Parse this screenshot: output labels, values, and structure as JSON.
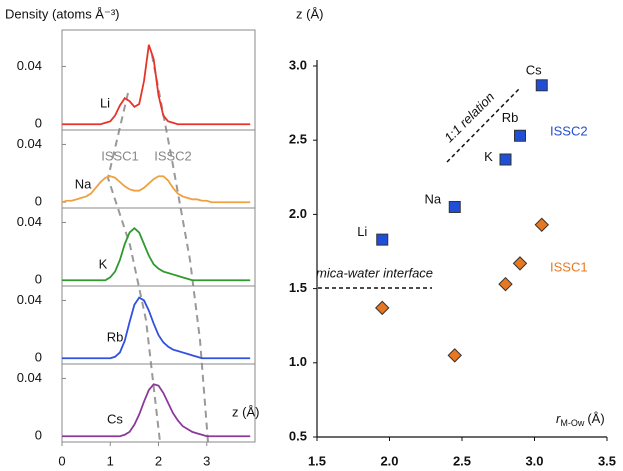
{
  "chart_data": [
    {
      "type": "panel-lines",
      "y_label": "Density (atoms Å⁻³)",
      "x_label": "z (Å)",
      "annotations": [
        "ISSC1",
        "ISSC2"
      ],
      "xlim": [
        0,
        4
      ],
      "xticks": [
        0,
        1,
        2,
        3
      ],
      "ylim": [
        -0.004,
        0.05
      ],
      "yticks": [
        0,
        0.04
      ],
      "x": [
        0,
        0.1,
        0.2,
        0.3,
        0.4,
        0.5,
        0.6,
        0.7,
        0.8,
        0.9,
        1.0,
        1.1,
        1.2,
        1.3,
        1.4,
        1.5,
        1.6,
        1.7,
        1.8,
        1.9,
        2.0,
        2.1,
        2.2,
        2.3,
        2.4,
        2.5,
        2.6,
        2.7,
        2.8,
        2.9,
        3.0,
        3.1,
        3.2,
        3.3,
        3.4,
        3.5,
        3.6,
        3.7,
        3.8,
        3.9
      ],
      "series": [
        {
          "name": "Li",
          "color": "#e8332a",
          "values": [
            0,
            0,
            0,
            0,
            0,
            0,
            0,
            0,
            0,
            0.001,
            0.002,
            0.006,
            0.013,
            0.018,
            0.016,
            0.012,
            0.014,
            0.03,
            0.055,
            0.045,
            0.02,
            0.006,
            0.002,
            0.001,
            0,
            0,
            0,
            0,
            0,
            0,
            0,
            0,
            0,
            0,
            0,
            0,
            0,
            0,
            0,
            0
          ]
        },
        {
          "name": "Na",
          "color": "#f0a040",
          "values": [
            0,
            0.001,
            0.001,
            0.002,
            0.003,
            0.004,
            0.006,
            0.01,
            0.014,
            0.017,
            0.018,
            0.017,
            0.014,
            0.011,
            0.009,
            0.008,
            0.008,
            0.01,
            0.013,
            0.016,
            0.018,
            0.018,
            0.015,
            0.01,
            0.006,
            0.004,
            0.003,
            0.002,
            0.002,
            0.001,
            0.001,
            0,
            0,
            0,
            0,
            0,
            0,
            0,
            0,
            0
          ]
        },
        {
          "name": "K",
          "color": "#2e9a2e",
          "values": [
            0,
            0,
            0,
            0,
            0,
            0,
            0,
            0,
            0,
            0,
            0.002,
            0.006,
            0.014,
            0.025,
            0.033,
            0.036,
            0.033,
            0.025,
            0.017,
            0.011,
            0.008,
            0.006,
            0.005,
            0.004,
            0.003,
            0.002,
            0.001,
            0,
            0,
            0,
            0,
            0,
            0,
            0,
            0,
            0,
            0,
            0,
            0,
            0
          ]
        },
        {
          "name": "Rb",
          "color": "#3050e0",
          "values": [
            0,
            0,
            0,
            0,
            0,
            0,
            0,
            0,
            0,
            0,
            0,
            0.001,
            0.004,
            0.012,
            0.025,
            0.037,
            0.042,
            0.04,
            0.033,
            0.024,
            0.016,
            0.011,
            0.008,
            0.006,
            0.005,
            0.004,
            0.003,
            0.002,
            0.001,
            0,
            0,
            0,
            0,
            0,
            0,
            0,
            0,
            0,
            0,
            0
          ]
        },
        {
          "name": "Cs",
          "color": "#8b3a9a",
          "values": [
            0,
            0,
            0,
            0,
            0,
            0,
            0,
            0,
            0,
            0,
            0,
            0,
            0,
            0.001,
            0.003,
            0.008,
            0.015,
            0.024,
            0.032,
            0.036,
            0.035,
            0.03,
            0.023,
            0.016,
            0.011,
            0.007,
            0.005,
            0.003,
            0.002,
            0.001,
            0,
            0,
            0,
            0,
            0,
            0,
            0,
            0,
            0,
            0
          ]
        }
      ]
    },
    {
      "type": "scatter",
      "y_label": "z (Å)",
      "x_label": {
        "main": "r",
        "sub": "M-Ow",
        "unit": "(Å)"
      },
      "annotations": [
        "1:1 relation",
        "mica-water interface"
      ],
      "xlim": [
        1.5,
        3.5
      ],
      "xticks": [
        1.5,
        {
          "value": 2,
          "label": "2.0"
        },
        2.5,
        {
          "value": 3,
          "label": "3.0"
        },
        3.5
      ],
      "ylim": [
        0.5,
        3.0
      ],
      "yticks": [
        0.5,
        {
          "value": 1,
          "label": "1.0"
        },
        1.5,
        {
          "value": 2,
          "label": "2.0"
        },
        2.5,
        {
          "value": 3,
          "label": "3.0"
        }
      ],
      "series": [
        {
          "name": "ISSC2",
          "color": "#1f4fd6",
          "marker": "square",
          "x": [
            1.95,
            2.45,
            2.8,
            2.9,
            3.05
          ],
          "values": [
            1.83,
            2.05,
            2.37,
            2.53,
            2.87
          ],
          "point_labels": [
            "Li",
            "Na",
            "K",
            "Rb",
            "Cs"
          ]
        },
        {
          "name": "ISSC1",
          "color": "#e87722",
          "marker": "diamond",
          "x": [
            1.95,
            2.45,
            2.8,
            2.9,
            3.05
          ],
          "values": [
            1.37,
            1.05,
            1.53,
            1.67,
            1.93
          ]
        }
      ]
    }
  ]
}
